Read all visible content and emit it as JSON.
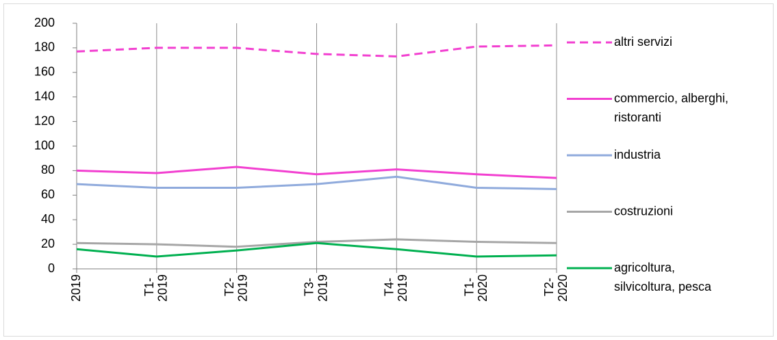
{
  "chart_data": {
    "type": "line",
    "categories": [
      "2019",
      "T1- 2019",
      "T2- 2019",
      "T3- 2019",
      "T4- 2019",
      "T1- 2020",
      "T2- 2020"
    ],
    "series": [
      {
        "name": "altri servizi",
        "color": "#f23fd0",
        "dashed": true,
        "values": [
          177,
          180,
          180,
          175,
          173,
          181,
          182
        ]
      },
      {
        "name": "commercio, alberghi, ristoranti",
        "color": "#f23fd0",
        "dashed": false,
        "values": [
          80,
          78,
          83,
          77,
          81,
          77,
          74
        ]
      },
      {
        "name": "industria",
        "color": "#8faadc",
        "dashed": false,
        "values": [
          69,
          66,
          66,
          69,
          75,
          66,
          65
        ]
      },
      {
        "name": "costruzioni",
        "color": "#a6a6a6",
        "dashed": false,
        "values": [
          21,
          20,
          18,
          22,
          24,
          22,
          21
        ]
      },
      {
        "name": "agricoltura, silvicoltura, pesca",
        "color": "#00b050",
        "dashed": false,
        "values": [
          16,
          10,
          15,
          21,
          16,
          10,
          11
        ]
      }
    ],
    "ylim": [
      0,
      200
    ],
    "yticks": [
      0,
      20,
      40,
      60,
      80,
      100,
      120,
      140,
      160,
      180,
      200
    ],
    "vertical_grid": true,
    "legend": "right"
  }
}
